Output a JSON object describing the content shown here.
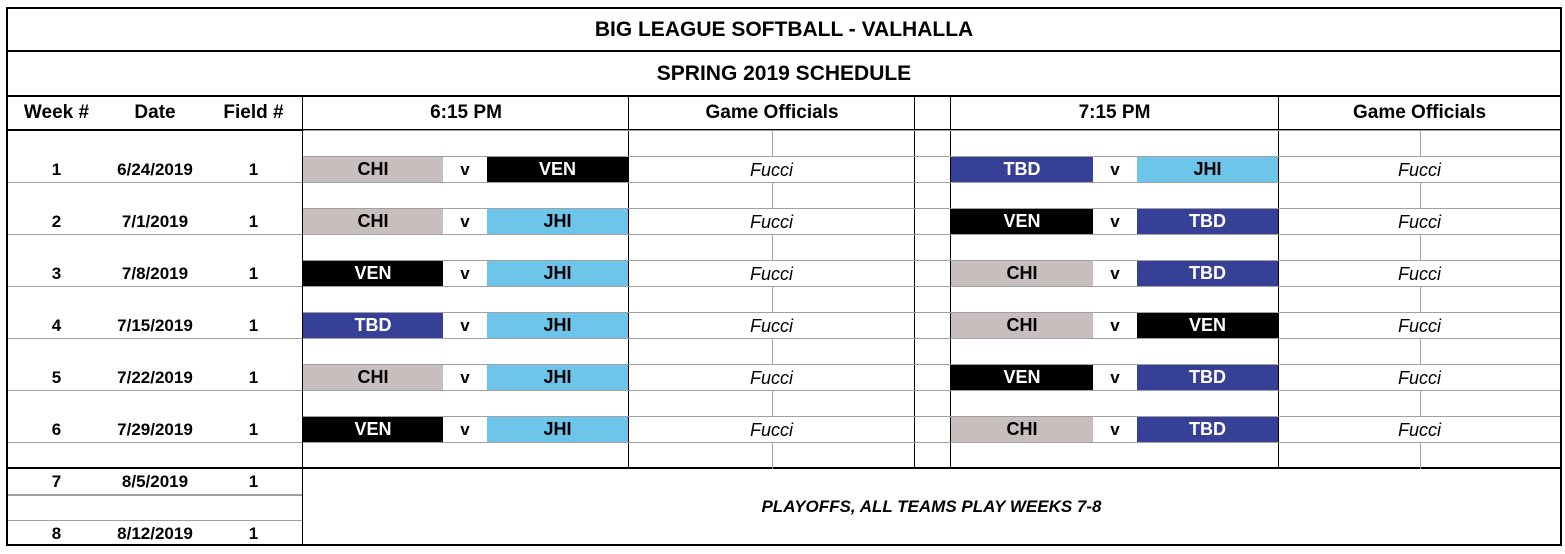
{
  "title": "BIG LEAGUE SOFTBALL - VALHALLA",
  "subtitle": "SPRING 2019 SCHEDULE",
  "headers": {
    "week": "Week #",
    "date": "Date",
    "field": "Field #",
    "time1": "6:15 PM",
    "officials1": "Game Officials",
    "time2": "7:15 PM",
    "officials2": "Game Officials"
  },
  "team_colors": {
    "CHI": {
      "bg": "#c9bebe",
      "fg": "#000000"
    },
    "VEN": {
      "bg": "#000000",
      "fg": "#ffffff"
    },
    "JHI": {
      "bg": "#6dc5ea",
      "fg": "#000000"
    },
    "TBD": {
      "bg": "#364096",
      "fg": "#ffffff"
    }
  },
  "vs_label": "v",
  "weeks": [
    {
      "week": "1",
      "date": "6/24/2019",
      "field": "1",
      "game1": {
        "home": "CHI",
        "away": "VEN",
        "official": "Fucci"
      },
      "game2": {
        "home": "TBD",
        "away": "JHI",
        "official": "Fucci"
      }
    },
    {
      "week": "2",
      "date": "7/1/2019",
      "field": "1",
      "game1": {
        "home": "CHI",
        "away": "JHI",
        "official": "Fucci"
      },
      "game2": {
        "home": "VEN",
        "away": "TBD",
        "official": "Fucci"
      }
    },
    {
      "week": "3",
      "date": "7/8/2019",
      "field": "1",
      "game1": {
        "home": "VEN",
        "away": "JHI",
        "official": "Fucci"
      },
      "game2": {
        "home": "CHI",
        "away": "TBD",
        "official": "Fucci"
      }
    },
    {
      "week": "4",
      "date": "7/15/2019",
      "field": "1",
      "game1": {
        "home": "TBD",
        "away": "JHI",
        "official": "Fucci"
      },
      "game2": {
        "home": "CHI",
        "away": "VEN",
        "official": "Fucci"
      }
    },
    {
      "week": "5",
      "date": "7/22/2019",
      "field": "1",
      "game1": {
        "home": "CHI",
        "away": "JHI",
        "official": "Fucci"
      },
      "game2": {
        "home": "VEN",
        "away": "TBD",
        "official": "Fucci"
      }
    },
    {
      "week": "6",
      "date": "7/29/2019",
      "field": "1",
      "game1": {
        "home": "VEN",
        "away": "JHI",
        "official": "Fucci"
      },
      "game2": {
        "home": "CHI",
        "away": "TBD",
        "official": "Fucci"
      }
    }
  ],
  "playoff_weeks": [
    {
      "week": "7",
      "date": "8/5/2019",
      "field": "1"
    },
    {
      "week": "8",
      "date": "8/12/2019",
      "field": "1"
    }
  ],
  "playoff_note": "PLAYOFFS, ALL TEAMS PLAY WEEKS 7-8"
}
